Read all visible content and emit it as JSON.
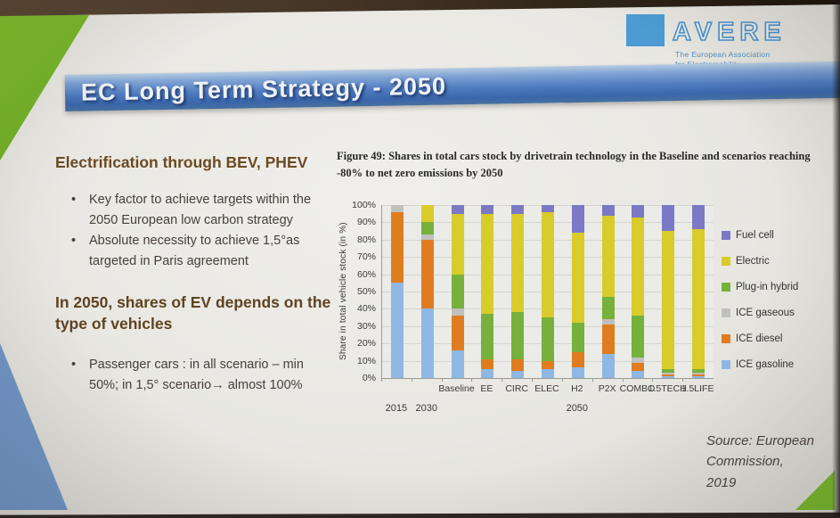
{
  "logo": {
    "name": "AVERE",
    "tagline_line1": "The European Association",
    "tagline_line2": "for Electromobility"
  },
  "banner": {
    "title": "EC Long Term Strategy - 2050"
  },
  "left_panel": {
    "heading1": "Electrification through BEV, PHEV",
    "bullets1": [
      "Key factor to achieve targets within the 2050 European low carbon strategy",
      "Absolute necessity to achieve 1,5°as targeted in Paris agreement"
    ],
    "heading2": "In 2050, shares of EV depends on the type of vehicles",
    "bullets2": [
      "Passenger cars : in all scenario – min 50%; in 1,5° scenario→ almost 100%"
    ]
  },
  "chart_data": {
    "type": "bar",
    "stacked": true,
    "title": "Figure 49: Shares in total cars stock by drivetrain technology in the Baseline and scenarios reaching -80% to net zero emissions by 2050",
    "ylabel": "Share in total vehicle stock (in %)",
    "ylim": [
      0,
      100
    ],
    "ytick_step": 10,
    "ytick_suffix": "%",
    "grid": true,
    "legend_position": "right",
    "categories": [
      "2015",
      "2030",
      "Baseline",
      "EE",
      "CIRC",
      "ELEC",
      "H2",
      "P2X",
      "COMBO",
      "1.5TECH",
      "1.5LIFE"
    ],
    "scenario_label_start_index": 2,
    "group_labels": [
      {
        "label": "2015",
        "from": 0,
        "to": 0
      },
      {
        "label": "2030",
        "from": 1,
        "to": 1
      },
      {
        "label": "2050",
        "from": 2,
        "to": 10
      }
    ],
    "series": [
      {
        "name": "ICE gasoline",
        "color": "#8fb7e4",
        "values": [
          55,
          40,
          16,
          5,
          4,
          5,
          6,
          14,
          4,
          1,
          1
        ]
      },
      {
        "name": "ICE diesel",
        "color": "#e07c20",
        "values": [
          41,
          40,
          20,
          6,
          7,
          5,
          9,
          17,
          5,
          1,
          1
        ]
      },
      {
        "name": "ICE gaseous",
        "color": "#c0c0bd",
        "values": [
          4,
          3,
          4,
          0,
          0,
          0,
          0,
          3,
          3,
          1,
          1
        ]
      },
      {
        "name": "Plug-in hybrid",
        "color": "#76b13c",
        "values": [
          0,
          7,
          20,
          26,
          27,
          25,
          17,
          13,
          24,
          2,
          2
        ]
      },
      {
        "name": "Electric",
        "color": "#d9cb2a",
        "values": [
          0,
          10,
          35,
          58,
          57,
          61,
          52,
          47,
          57,
          80,
          81
        ]
      },
      {
        "name": "Fuel cell",
        "color": "#7b79c6",
        "values": [
          0,
          0,
          5,
          5,
          5,
          4,
          16,
          6,
          7,
          15,
          14
        ]
      }
    ],
    "legend_order_top_to_bottom": [
      "Fuel cell",
      "Electric",
      "Plug-in hybrid",
      "ICE gaseous",
      "ICE diesel",
      "ICE gasoline"
    ]
  },
  "source": {
    "line1": "Source: European",
    "line2": "Commission,",
    "line3": "2019"
  }
}
